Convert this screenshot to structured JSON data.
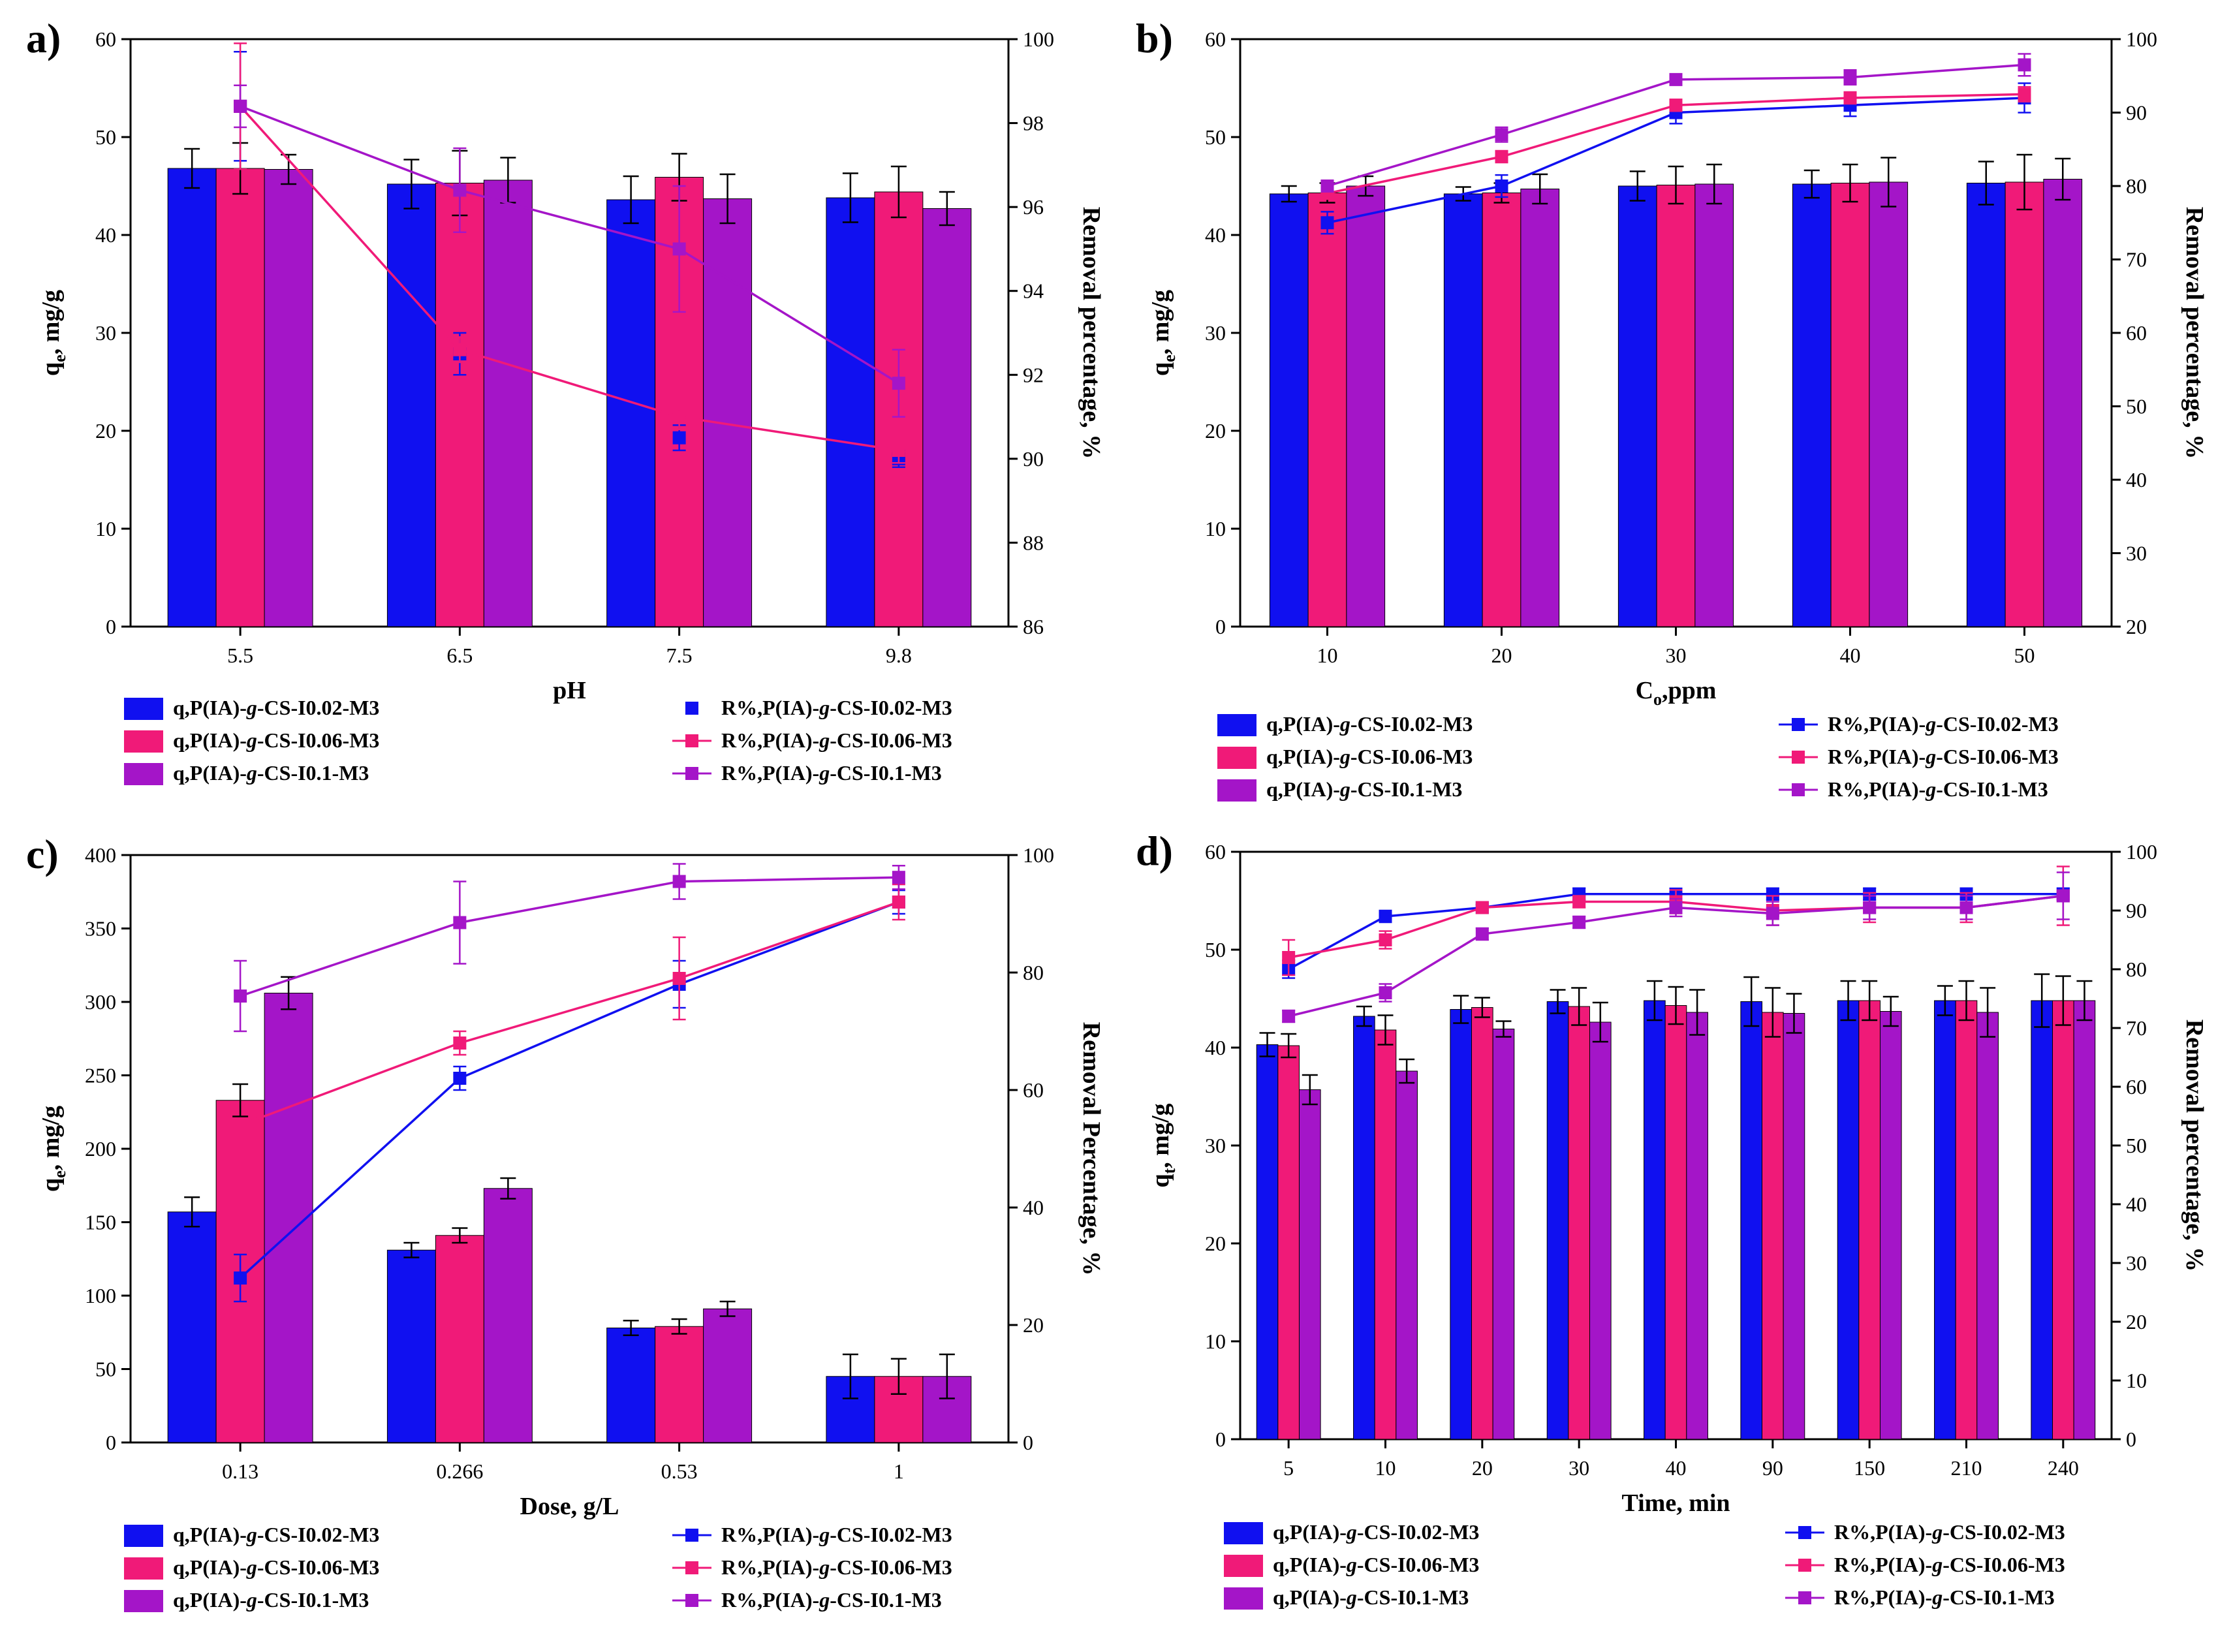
{
  "colors": {
    "s1": "#1010f0",
    "s2": "#f01a78",
    "s3": "#a415c8"
  },
  "chart_data": [
    {
      "panel_label": "a)",
      "type": "bar+line",
      "xlabel": "pH",
      "ylabel_left_main": "q",
      "ylabel_left_sub": "e",
      "ylabel_left_rest": ", mg/g",
      "ylabel_right": "Removal percentage, %",
      "categories": [
        "5.5",
        "6.5",
        "7.5",
        "9.8"
      ],
      "ylim_left": [
        0,
        60
      ],
      "yticks_left": [
        0,
        10,
        20,
        30,
        40,
        50,
        60
      ],
      "ylim_right": [
        86,
        100
      ],
      "yticks_right": [
        86,
        88,
        90,
        92,
        94,
        96,
        98,
        100
      ],
      "bar_series": [
        {
          "name": "q,P(IA)-g-CS-I0.02-M3",
          "values": [
            46.8,
            45.2,
            43.6,
            43.8
          ],
          "errors": [
            2.0,
            2.5,
            2.4,
            2.5
          ]
        },
        {
          "name": "q,P(IA)-g-CS-I0.06-M3",
          "values": [
            46.8,
            45.3,
            45.9,
            44.4
          ],
          "errors": [
            2.6,
            3.3,
            2.4,
            2.6
          ]
        },
        {
          "name": "q,P(IA)-g-CS-I0.1-M3",
          "values": [
            46.7,
            45.6,
            43.7,
            42.7
          ],
          "errors": [
            1.5,
            2.3,
            2.5,
            1.7
          ]
        }
      ],
      "line_series": [
        {
          "name": "R%,P(IA)-g-CS-I0.02-M3",
          "values": [
            98.4,
            92.5,
            90.5,
            90.0
          ],
          "errors": [
            1.3,
            0.5,
            0.3,
            0.2
          ],
          "lines": false
        },
        {
          "name": "R%,P(IA)-g-CS-I0.06-M3",
          "values": [
            98.4,
            92.6,
            91.0,
            90.2
          ],
          "errors": [
            1.5,
            0.3,
            0.3,
            0.3
          ],
          "lines": true
        },
        {
          "name": "R%,P(IA)-g-CS-I0.1-M3",
          "values": [
            98.4,
            96.4,
            95.0,
            91.8
          ],
          "errors": [
            0.5,
            1.0,
            1.5,
            0.8
          ],
          "lines": true
        }
      ]
    },
    {
      "panel_label": "b)",
      "type": "bar+line",
      "xlabel_main": "C",
      "xlabel_sub": "o",
      "xlabel_rest": ",ppm",
      "ylabel_left_main": "q",
      "ylabel_left_sub": "e",
      "ylabel_left_rest": ", mg/g",
      "ylabel_right": "Removal percentage, %",
      "categories": [
        "10",
        "20",
        "30",
        "40",
        "50"
      ],
      "ylim_left": [
        0,
        60
      ],
      "yticks_left": [
        0,
        10,
        20,
        30,
        40,
        50,
        60
      ],
      "ylim_right": [
        20,
        100
      ],
      "yticks_right": [
        20,
        30,
        40,
        50,
        60,
        70,
        80,
        90,
        100
      ],
      "bar_series": [
        {
          "name": "q,P(IA)-g-CS-I0.02-M3",
          "values": [
            44.2,
            44.2,
            45.0,
            45.2,
            45.3
          ],
          "errors": [
            0.8,
            0.7,
            1.5,
            1.4,
            2.2
          ]
        },
        {
          "name": "q,P(IA)-g-CS-I0.06-M3",
          "values": [
            44.3,
            44.3,
            45.1,
            45.3,
            45.4
          ],
          "errors": [
            1.0,
            1.0,
            1.9,
            1.9,
            2.8
          ]
        },
        {
          "name": "q,P(IA)-g-CS-I0.1-M3",
          "values": [
            45.0,
            44.7,
            45.2,
            45.4,
            45.7
          ],
          "errors": [
            1.0,
            1.5,
            2.0,
            2.5,
            2.1
          ]
        }
      ],
      "line_series": [
        {
          "name": "R%,P(IA)-g-CS-I0.02-M3",
          "values": [
            75.0,
            80.0,
            90.0,
            91.0,
            92.0
          ],
          "errors": [
            1.5,
            1.5,
            1.5,
            1.5,
            2.0
          ],
          "lines": true
        },
        {
          "name": "R%,P(IA)-g-CS-I0.06-M3",
          "values": [
            79.0,
            84.0,
            91.0,
            92.0,
            92.5
          ],
          "errors": [
            0.5,
            0.8,
            0.8,
            0.8,
            1.0
          ],
          "lines": true
        },
        {
          "name": "R%,P(IA)-g-CS-I0.1-M3",
          "values": [
            80.0,
            87.0,
            94.5,
            94.8,
            96.5
          ],
          "errors": [
            0.5,
            1.0,
            0.5,
            1.0,
            1.5
          ],
          "lines": true
        }
      ]
    },
    {
      "panel_label": "c)",
      "type": "bar+line",
      "xlabel": "Dose, g/L",
      "ylabel_left_main": "q",
      "ylabel_left_sub": "e",
      "ylabel_left_rest": ", mg/g",
      "ylabel_right": "Removal Percentage, %",
      "categories": [
        "0.13",
        "0.266",
        "0.53",
        "1"
      ],
      "ylim_left": [
        0,
        400
      ],
      "yticks_left": [
        0,
        50,
        100,
        150,
        200,
        250,
        300,
        350,
        400
      ],
      "ylim_right": [
        0,
        100
      ],
      "yticks_right": [
        0,
        20,
        40,
        60,
        80,
        100
      ],
      "bar_series": [
        {
          "name": "q,P(IA)-g-CS-I0.02-M3",
          "values": [
            157,
            131,
            78,
            45
          ],
          "errors": [
            10,
            5,
            5,
            15
          ]
        },
        {
          "name": "q,P(IA)-g-CS-I0.06-M3",
          "values": [
            233,
            141,
            79,
            45
          ],
          "errors": [
            11,
            5,
            5,
            12
          ]
        },
        {
          "name": "q,P(IA)-g-CS-I0.1-M3",
          "values": [
            306,
            173,
            91,
            45
          ],
          "errors": [
            11,
            7,
            5,
            15
          ]
        }
      ],
      "line_series": [
        {
          "name": "R%,P(IA)-g-CS-I0.02-M3",
          "values": [
            28,
            62,
            78,
            92
          ],
          "errors": [
            4,
            2,
            4,
            2
          ],
          "lines": true
        },
        {
          "name": "R%,P(IA)-g-CS-I0.06-M3",
          "values": [
            54,
            68,
            79,
            92
          ],
          "errors": [
            0,
            2,
            7,
            3
          ],
          "lines": true
        },
        {
          "name": "R%,P(IA)-g-CS-I0.1-M3",
          "values": [
            76,
            88.5,
            95.5,
            96.2
          ],
          "errors": [
            6,
            7,
            3,
            2
          ],
          "lines": true
        }
      ]
    },
    {
      "panel_label": "d)",
      "type": "bar+line",
      "xlabel": "Time, min",
      "ylabel_left_main": "q",
      "ylabel_left_sub": "t",
      "ylabel_left_rest": ", mg/g",
      "ylabel_right": "Removal percentage, %",
      "categories": [
        "5",
        "10",
        "20",
        "30",
        "40",
        "90",
        "150",
        "210",
        "240"
      ],
      "ylim_left": [
        0,
        60
      ],
      "yticks_left": [
        0,
        10,
        20,
        30,
        40,
        50,
        60
      ],
      "ylim_right": [
        0,
        100
      ],
      "yticks_right": [
        0,
        10,
        20,
        30,
        40,
        50,
        60,
        70,
        80,
        90,
        100
      ],
      "bar_series": [
        {
          "name": "q,P(IA)-g-CS-I0.02-M3",
          "values": [
            40.3,
            43.2,
            43.9,
            44.7,
            44.8,
            44.7,
            44.8,
            44.8,
            44.8
          ],
          "errors": [
            1.2,
            1.0,
            1.4,
            1.2,
            2.0,
            2.5,
            2.0,
            1.5,
            2.7
          ]
        },
        {
          "name": "q,P(IA)-g-CS-I0.06-M3",
          "values": [
            40.2,
            41.8,
            44.1,
            44.2,
            44.3,
            43.6,
            44.8,
            44.8,
            44.8
          ],
          "errors": [
            1.2,
            1.5,
            1.0,
            1.9,
            1.9,
            2.5,
            2.0,
            2.0,
            2.5
          ]
        },
        {
          "name": "q,P(IA)-g-CS-I0.1-M3",
          "values": [
            35.7,
            37.6,
            41.9,
            42.6,
            43.6,
            43.5,
            43.7,
            43.6,
            44.8
          ],
          "errors": [
            1.5,
            1.2,
            0.8,
            2.0,
            2.3,
            2.0,
            1.5,
            2.5,
            2.0
          ]
        }
      ],
      "line_series": [
        {
          "name": "R%,P(IA)-g-CS-I0.02-M3",
          "values": [
            80,
            89,
            90.5,
            92.8,
            92.8,
            92.8,
            92.8,
            92.8,
            92.8
          ],
          "errors": [
            1.5,
            1,
            0.5,
            1,
            0.5,
            1,
            1,
            1,
            1
          ],
          "lines": true
        },
        {
          "name": "R%,P(IA)-g-CS-I0.06-M3",
          "values": [
            82,
            85,
            90.5,
            91.5,
            91.5,
            90,
            90.5,
            90.5,
            92.5
          ],
          "errors": [
            3,
            1.5,
            0.5,
            1,
            2,
            2.5,
            2.5,
            2.5,
            5
          ]
        },
        {
          "name": "R%,P(IA)-g-CS-I0.1-M3",
          "values": [
            72,
            76,
            86,
            88,
            90.5,
            89.5,
            90.5,
            90.5,
            92.5
          ],
          "errors": [
            1,
            1.5,
            1,
            1,
            1.5,
            2,
            2,
            2,
            4
          ],
          "lines": true
        }
      ]
    }
  ]
}
